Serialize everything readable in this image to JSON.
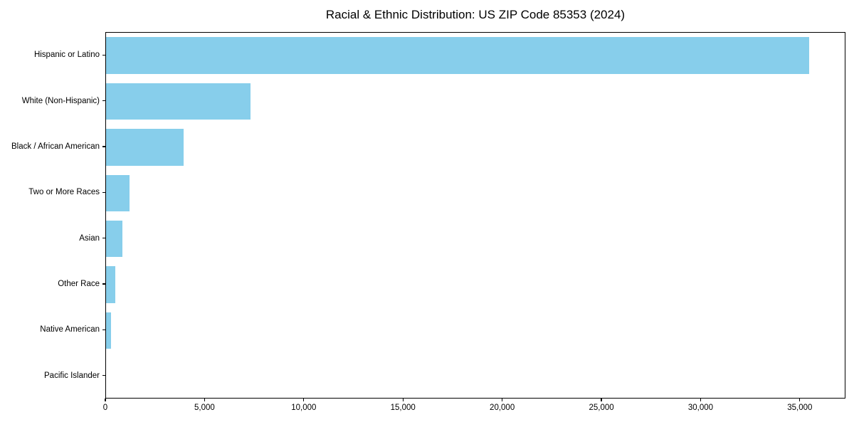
{
  "chart_data": {
    "type": "bar",
    "orientation": "horizontal",
    "title": "Racial & Ethnic Distribution: US ZIP Code 85353 (2024)",
    "categories": [
      "Hispanic or Latino",
      "White (Non-Hispanic)",
      "Black / African American",
      "Two or More Races",
      "Asian",
      "Other Race",
      "Native American",
      "Pacific Islander"
    ],
    "values": [
      35500,
      7290,
      3920,
      1190,
      830,
      460,
      250,
      0
    ],
    "bar_color": "#87CEEB",
    "xlabel": "",
    "ylabel": "",
    "xlim": [
      0,
      37300
    ],
    "x_ticks": [
      0,
      5000,
      10000,
      15000,
      20000,
      25000,
      30000,
      35000
    ],
    "x_tick_labels": [
      "0",
      "5,000",
      "10,000",
      "15,000",
      "20,000",
      "25,000",
      "30,000",
      "35,000"
    ],
    "grid": false,
    "legend": null,
    "background_color": "#ffffff",
    "text_color": "#000000"
  }
}
